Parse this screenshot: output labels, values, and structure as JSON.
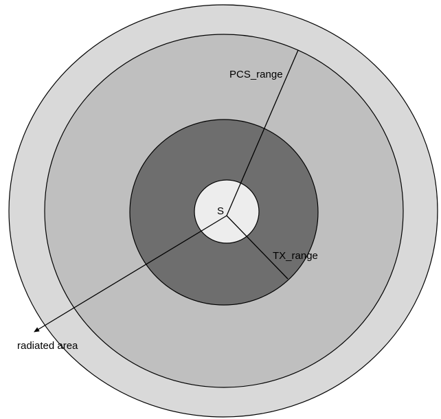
{
  "labels": {
    "center": "S",
    "pcs_range": "PCS_range",
    "tx_range": "TX_range",
    "radiated_area": "radiated area"
  },
  "colors": {
    "outer_ring": "#d9d9d9",
    "pcs_ring": "#bfbfbf",
    "tx_ring": "#6e6e6e",
    "center_disc": "#ededed",
    "outline": "#000000"
  }
}
